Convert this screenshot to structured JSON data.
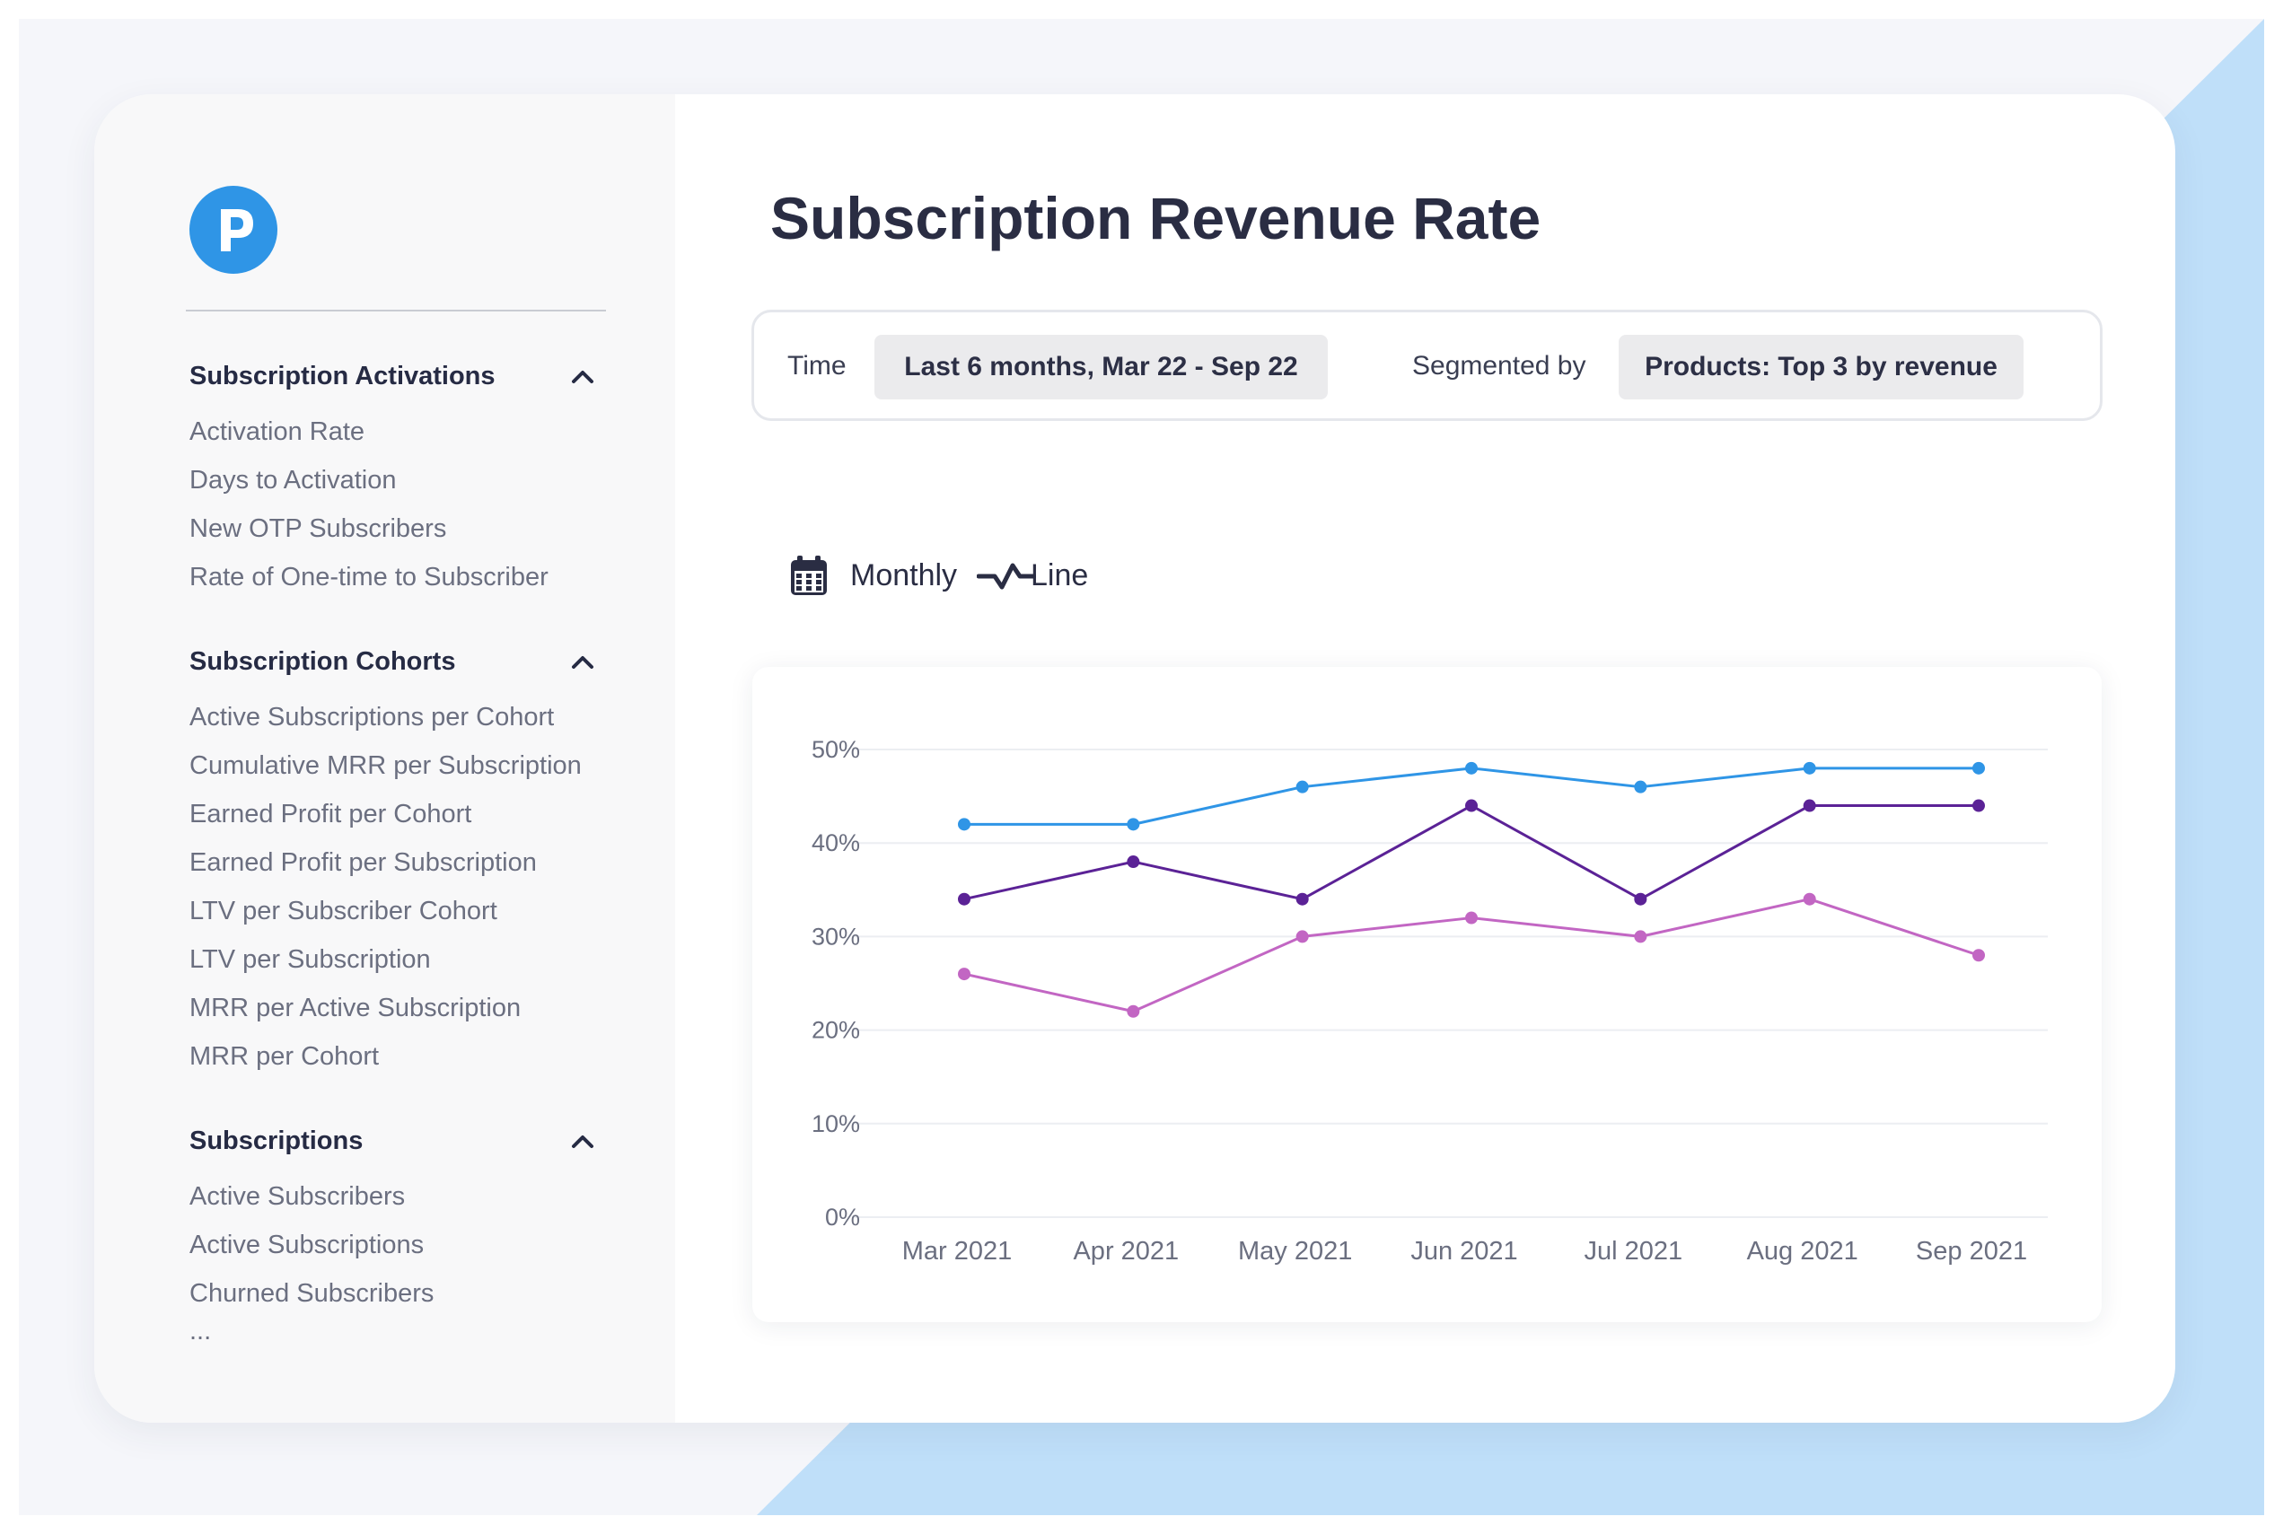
{
  "app": {
    "logo_letter": "P",
    "brand_color": "#2f95e6"
  },
  "sidebar": {
    "sections": [
      {
        "title": "Subscription Activations",
        "items": [
          "Activation Rate",
          "Days to Activation",
          "New OTP Subscribers",
          "Rate of One-time to Subscriber"
        ]
      },
      {
        "title": "Subscription Cohorts",
        "items": [
          "Active Subscriptions per Cohort",
          "Cumulative MRR per Subscription",
          "Earned Profit per Cohort",
          "Earned Profit per Subscription",
          "LTV per Subscriber Cohort",
          "LTV per Subscription",
          "MRR per Active Subscription",
          "MRR per Cohort"
        ]
      },
      {
        "title": "Subscriptions",
        "items": [
          "Active Subscribers",
          "Active Subscriptions",
          "Churned Subscribers",
          "..."
        ]
      }
    ]
  },
  "main": {
    "title": "Subscription Revenue Rate",
    "filters": {
      "time_label": "Time",
      "time_value": "Last 6 months, Mar 22 - Sep 22",
      "segment_label": "Segmented by",
      "segment_value": "Products: Top 3 by revenue"
    },
    "controls": {
      "interval_label": "Monthly",
      "interval_icon": "calendar-icon",
      "chart_type_label": "Line",
      "chart_type_icon": "line-chart-icon"
    }
  },
  "chart_data": {
    "type": "line",
    "categories": [
      "Mar 2021",
      "Apr 2021",
      "May 2021",
      "Jun 2021",
      "Jul 2021",
      "Aug 2021",
      "Sep 2021"
    ],
    "y_ticks": [
      "0%",
      "10%",
      "20%",
      "30%",
      "40%",
      "50%"
    ],
    "ylim": [
      0,
      50
    ],
    "grid": true,
    "series": [
      {
        "color": "#2f95e6",
        "values": [
          42,
          42,
          46,
          48,
          46,
          48,
          48
        ]
      },
      {
        "color": "#5b2296",
        "values": [
          34,
          38,
          34,
          44,
          34,
          44,
          44
        ]
      },
      {
        "color": "#c266c3",
        "values": [
          26,
          22,
          30,
          32,
          30,
          34,
          28
        ]
      }
    ],
    "colors": {
      "grid": "#eceef2",
      "tick_text": "#6b6f80"
    }
  }
}
